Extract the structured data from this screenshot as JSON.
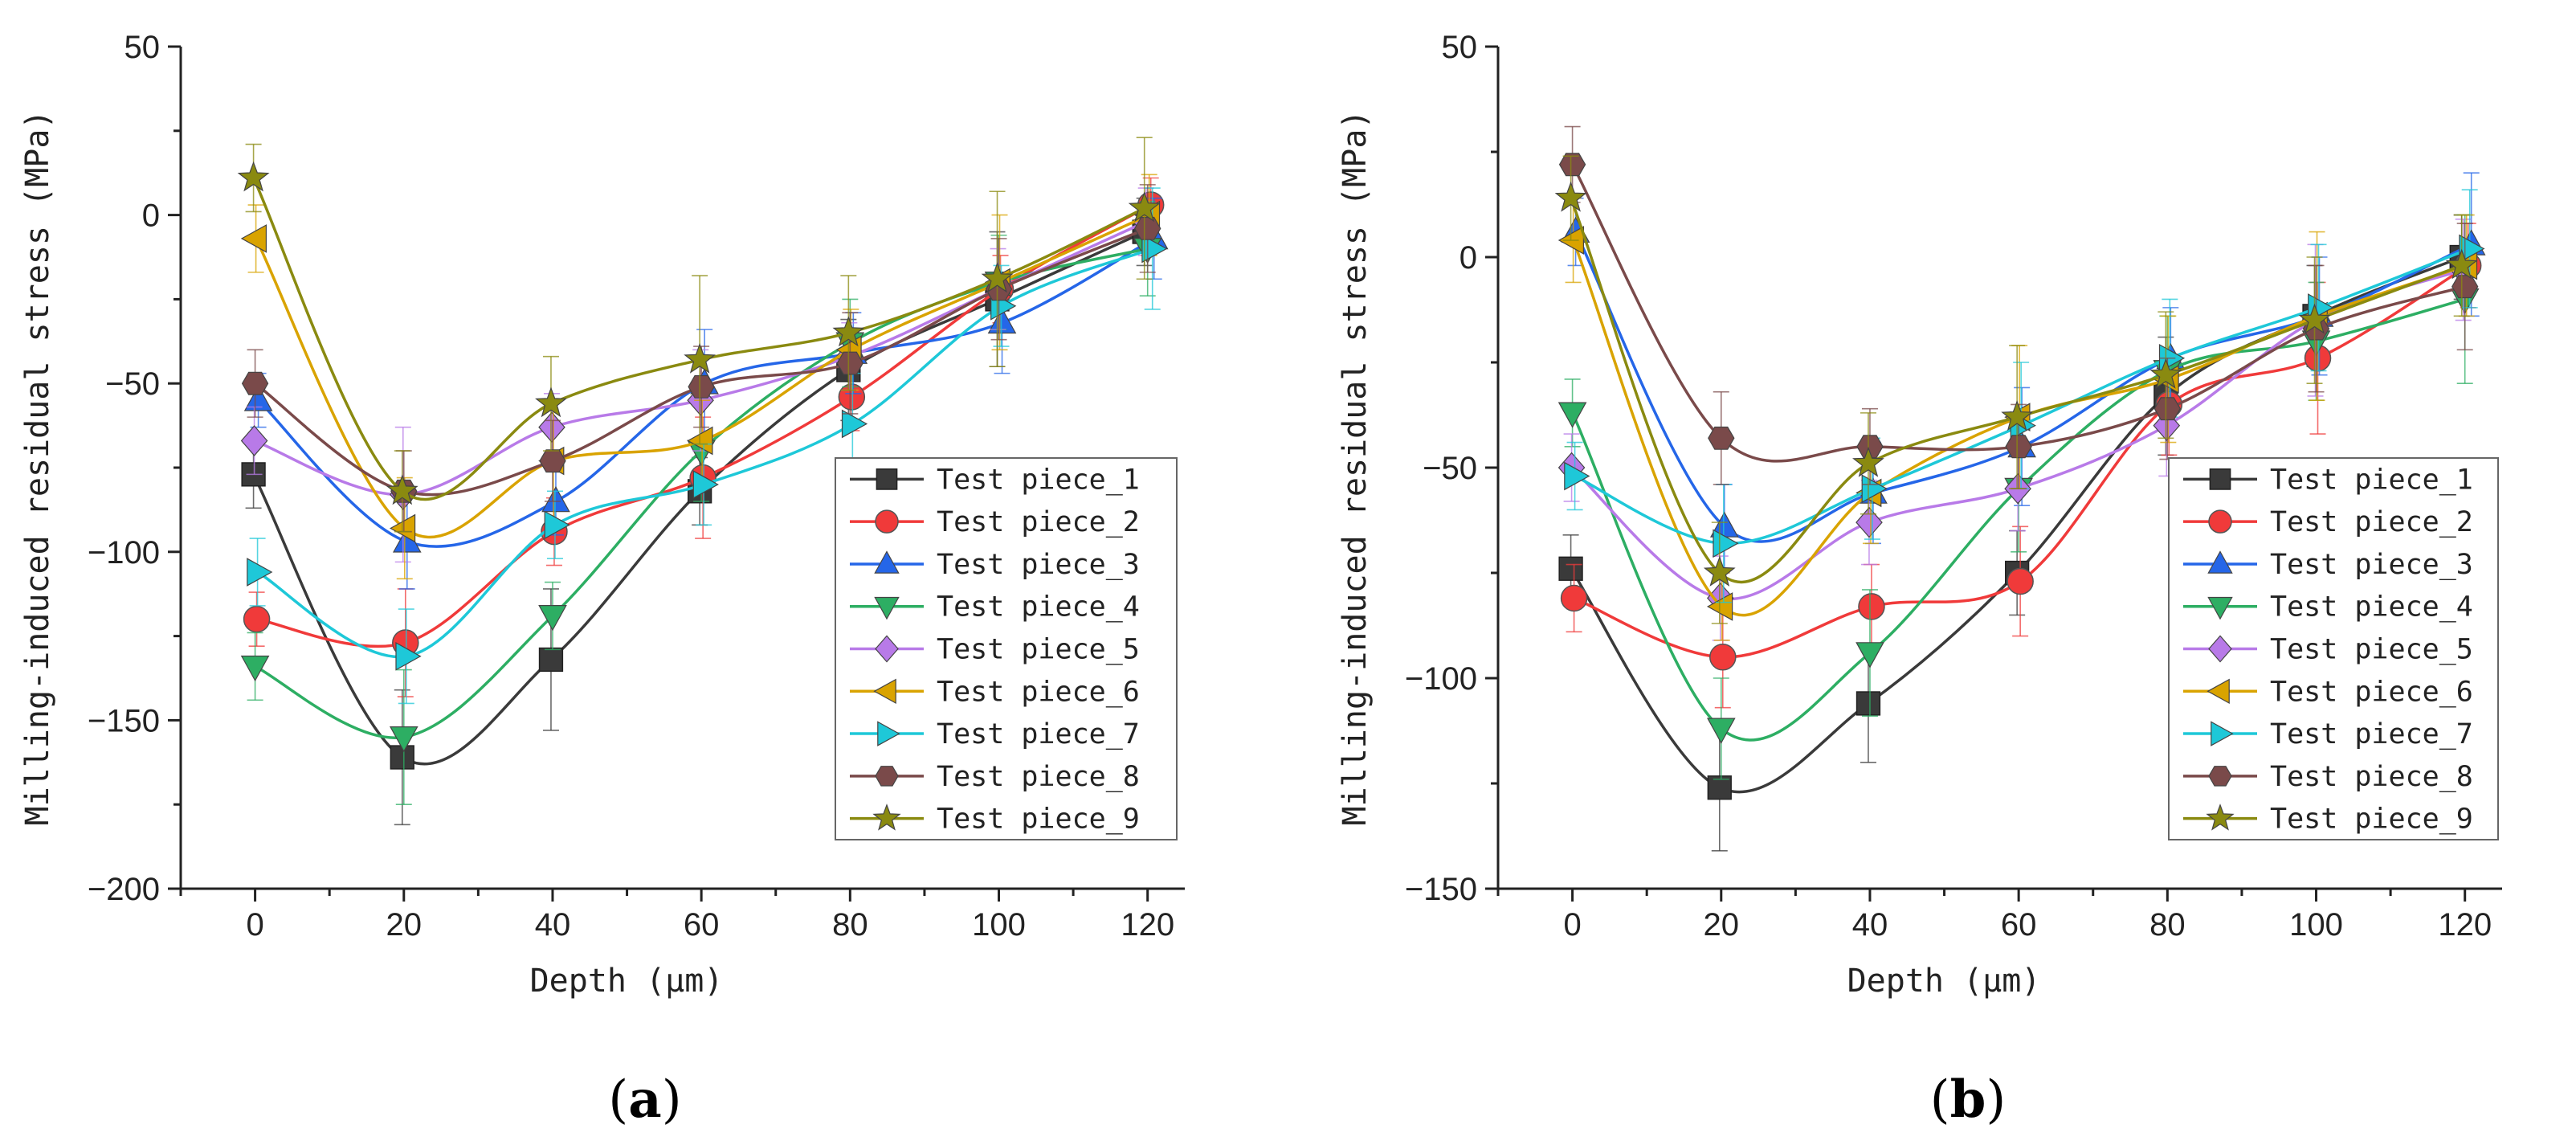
{
  "series_styles": [
    {
      "name": "Test piece_1",
      "color": "#3a3a3a",
      "marker": "square"
    },
    {
      "name": "Test piece_2",
      "color": "#f03a3a",
      "marker": "circle"
    },
    {
      "name": "Test piece_3",
      "color": "#2566e8",
      "marker": "triangle-up"
    },
    {
      "name": "Test piece_4",
      "color": "#2dae63",
      "marker": "triangle-down"
    },
    {
      "name": "Test piece_5",
      "color": "#b87ae8",
      "marker": "diamond"
    },
    {
      "name": "Test piece_6",
      "color": "#d9a300",
      "marker": "triangle-left"
    },
    {
      "name": "Test piece_7",
      "color": "#1ec8d8",
      "marker": "triangle-right"
    },
    {
      "name": "Test piece_8",
      "color": "#7a4a4a",
      "marker": "hexagon"
    },
    {
      "name": "Test piece_9",
      "color": "#8a8a10",
      "marker": "star"
    }
  ],
  "chart_data": [
    {
      "type": "line",
      "panel": "a",
      "panel_open": "(",
      "panel_close": ")",
      "xlabel": "Depth (μm)",
      "ylabel": "Milling-induced residual stress (MPa)",
      "xlim": [
        -10,
        125
      ],
      "ylim": [
        -200,
        50
      ],
      "xticks": [
        0,
        20,
        40,
        60,
        80,
        100,
        120
      ],
      "yticks": [
        -200,
        -150,
        -100,
        -50,
        0,
        50
      ],
      "x": [
        0,
        20,
        40,
        60,
        80,
        100,
        120
      ],
      "legend_position": "lower-right",
      "series": [
        {
          "name": "Test piece_1",
          "values": [
            -77,
            -161,
            -132,
            -82,
            -46,
            -25,
            -5
          ],
          "errors": [
            10,
            20,
            21,
            10,
            15,
            20,
            10
          ]
        },
        {
          "name": "Test piece_2",
          "values": [
            -120,
            -127,
            -94,
            -78,
            -54,
            -22,
            3
          ],
          "errors": [
            8,
            16,
            10,
            18,
            10,
            10,
            8
          ]
        },
        {
          "name": "Test piece_3",
          "values": [
            -55,
            -97,
            -85,
            -50,
            -41,
            -32,
            -7
          ],
          "errors": [
            8,
            14,
            10,
            16,
            12,
            15,
            12
          ]
        },
        {
          "name": "Test piece_4",
          "values": [
            -134,
            -155,
            -119,
            -70,
            -38,
            -20,
            -10
          ],
          "errors": [
            10,
            20,
            10,
            15,
            13,
            14,
            14
          ]
        },
        {
          "name": "Test piece_5",
          "values": [
            -67,
            -83,
            -63,
            -55,
            -42,
            -22,
            -2
          ],
          "errors": [
            10,
            20,
            10,
            15,
            10,
            12,
            10
          ]
        },
        {
          "name": "Test piece_6",
          "values": [
            -7,
            -93,
            -73,
            -67,
            -40,
            -20,
            0
          ],
          "errors": [
            10,
            15,
            18,
            12,
            12,
            20,
            12
          ]
        },
        {
          "name": "Test piece_7",
          "values": [
            -106,
            -131,
            -92,
            -80,
            -62,
            -27,
            -10
          ],
          "errors": [
            10,
            14,
            10,
            12,
            15,
            12,
            18
          ]
        },
        {
          "name": "Test piece_8",
          "values": [
            -50,
            -82,
            -73,
            -51,
            -44,
            -22,
            -4
          ],
          "errors": [
            10,
            12,
            12,
            12,
            15,
            15,
            13
          ]
        },
        {
          "name": "Test piece_9",
          "values": [
            11,
            -82,
            -56,
            -43,
            -35,
            -19,
            2
          ],
          "errors": [
            10,
            12,
            14,
            25,
            17,
            26,
            21
          ]
        }
      ]
    },
    {
      "type": "line",
      "panel": "b",
      "panel_open": "(",
      "panel_close": ")",
      "xlabel": "Depth (μm)",
      "ylabel": "Milling-induced residual stress (MPa)",
      "xlim": [
        -10,
        125
      ],
      "ylim": [
        -150,
        50
      ],
      "xticks": [
        0,
        20,
        40,
        60,
        80,
        100,
        120
      ],
      "yticks": [
        -150,
        -100,
        -50,
        0,
        50
      ],
      "x": [
        0,
        20,
        40,
        60,
        80,
        100,
        120
      ],
      "legend_position": "lower-right",
      "series": [
        {
          "name": "Test piece_1",
          "values": [
            -74,
            -126,
            -106,
            -75,
            -33,
            -14,
            0
          ],
          "errors": [
            8,
            15,
            14,
            10,
            14,
            12,
            10
          ]
        },
        {
          "name": "Test piece_2",
          "values": [
            -81,
            -95,
            -83,
            -77,
            -35,
            -24,
            -2
          ],
          "errors": [
            8,
            12,
            10,
            13,
            12,
            18,
            10
          ]
        },
        {
          "name": "Test piece_3",
          "values": [
            6,
            -64,
            -56,
            -45,
            -24,
            -14,
            3
          ],
          "errors": [
            8,
            10,
            12,
            14,
            12,
            14,
            17
          ]
        },
        {
          "name": "Test piece_4",
          "values": [
            -37,
            -112,
            -94,
            -55,
            -27,
            -20,
            -10
          ],
          "errors": [
            8,
            12,
            15,
            15,
            13,
            14,
            20
          ]
        },
        {
          "name": "Test piece_5",
          "values": [
            -50,
            -81,
            -63,
            -55,
            -40,
            -15,
            -3
          ],
          "errors": [
            8,
            10,
            10,
            10,
            12,
            18,
            12
          ]
        },
        {
          "name": "Test piece_6",
          "values": [
            4,
            -83,
            -56,
            -38,
            -29,
            -14,
            -2
          ],
          "errors": [
            10,
            8,
            12,
            17,
            15,
            20,
            12
          ]
        },
        {
          "name": "Test piece_7",
          "values": [
            -52,
            -68,
            -55,
            -40,
            -24,
            -12,
            2
          ],
          "errors": [
            8,
            14,
            12,
            15,
            14,
            15,
            14
          ]
        },
        {
          "name": "Test piece_8",
          "values": [
            22,
            -43,
            -45,
            -45,
            -36,
            -17,
            -7
          ],
          "errors": [
            9,
            11,
            9,
            10,
            12,
            15,
            15
          ]
        },
        {
          "name": "Test piece_9",
          "values": [
            14,
            -75,
            -49,
            -38,
            -28,
            -15,
            -2
          ],
          "errors": [
            10,
            12,
            12,
            17,
            15,
            15,
            12
          ]
        }
      ]
    }
  ]
}
